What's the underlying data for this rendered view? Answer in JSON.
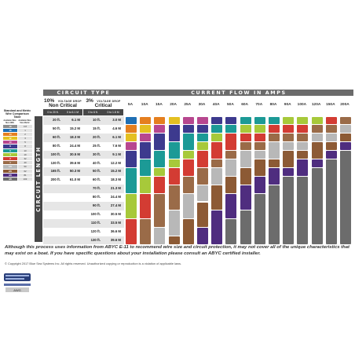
{
  "headers": {
    "circuit_type": "CIRCUIT TYPE",
    "current_flow": "CURRENT FLOW IN AMPS",
    "circuit_length": "CIRCUIT LENGTH"
  },
  "voltage_drop": {
    "noncritical_pct": "10%",
    "noncritical_small": "VOLTAGE DROP",
    "noncritical_label": "Non Critical",
    "critical_pct": "3%",
    "critical_small": "VOLTAGE DROP",
    "critical_label": "Critical"
  },
  "subheaders": [
    "0 to 20 ft.",
    "0 to 6.1 M",
    "0 to 6 ft.",
    "0 to 1.8 M"
  ],
  "amps": [
    "5A",
    "10A",
    "15A",
    "20A",
    "25A",
    "30A",
    "40A",
    "50A",
    "60A",
    "70A",
    "80A",
    "90A",
    "100A",
    "120A",
    "150A",
    "200A"
  ],
  "lengths_noncritical": [
    [
      "20 ft.",
      "6.1 M"
    ],
    [
      "50 ft.",
      "15.2 M"
    ],
    [
      "60 ft.",
      "18.3 M"
    ],
    [
      "80 ft.",
      "24.4 M"
    ],
    [
      "100 ft.",
      "30.5 M"
    ],
    [
      "130 ft.",
      "39.6 M"
    ],
    [
      "165 ft.",
      "50.3 M"
    ],
    [
      "200 ft.",
      "61.0 M"
    ]
  ],
  "lengths_critical": [
    [
      "10 ft.",
      "3.0 M"
    ],
    [
      "15 ft.",
      "4.6 M"
    ],
    [
      "20 ft.",
      "6.1 M"
    ],
    [
      "25 ft.",
      "7.6 M"
    ],
    [
      "30 ft.",
      "9.1 M"
    ],
    [
      "40 ft.",
      "12.2 M"
    ],
    [
      "50 ft.",
      "15.2 M"
    ],
    [
      "60 ft.",
      "18.3 M"
    ],
    [
      "70 ft.",
      "21.3 M"
    ],
    [
      "80 ft.",
      "24.4 M"
    ],
    [
      "90 ft.",
      "27.4 M"
    ],
    [
      "100 ft.",
      "30.5 M"
    ],
    [
      "110 ft.",
      "33.5 M"
    ],
    [
      "120 ft.",
      "36.6 M"
    ],
    [
      "130 ft.",
      "39.6 M"
    ]
  ],
  "std_table": {
    "title_line1": "Standard and Metric",
    "title_line2": "Wire Comparison Table",
    "col1": "Available Wire Size AWG",
    "col2": "Available Wire Size Metric",
    "rows": [
      {
        "awg": "18",
        "mm": "0.8",
        "color": "#8e8e8e"
      },
      {
        "awg": "16",
        "mm": "1",
        "color": "#1f6fb4"
      },
      {
        "awg": "14",
        "mm": "2",
        "color": "#e57f1f"
      },
      {
        "awg": "12",
        "mm": "3",
        "color": "#e4c021"
      },
      {
        "awg": "10",
        "mm": "5",
        "color": "#b7478f"
      },
      {
        "awg": "8",
        "mm": "8",
        "color": "#3d3a8e"
      },
      {
        "awg": "6",
        "mm": "13",
        "color": "#1c9a96"
      },
      {
        "awg": "4",
        "mm": "19",
        "color": "#a7c93a"
      },
      {
        "awg": "2",
        "mm": "32",
        "color": "#d33c33"
      },
      {
        "awg": "1",
        "mm": "40",
        "color": "#9a6b48"
      },
      {
        "awg": "1/0",
        "mm": "50",
        "color": "#b8b8b8"
      },
      {
        "awg": "2/0",
        "mm": "62",
        "color": "#8c5a35"
      },
      {
        "awg": "3/0",
        "mm": "81",
        "color": "#4f2d7f"
      },
      {
        "awg": "4/0",
        "mm": "103",
        "color": "#6c6c6c"
      }
    ]
  },
  "gauge_label": "AWG",
  "colors": {
    "header_gray": "#6b6b6b",
    "dark_gray": "#474747",
    "row_tint": "#e6e6e6"
  },
  "disclaimer": "Although this process uses information from ABYC E-11 to recommend wire size and circuit protection, it may not cover all of the unique characteristics that may exist on a boat. If you have specific questions about your installation please consult an ABYC certified installer.",
  "copyright": "© Copyright 2017 Blue Sea Systems Inc. All rights reserved. Unauthorized copying or reproduction is a violation of applicable laws."
}
